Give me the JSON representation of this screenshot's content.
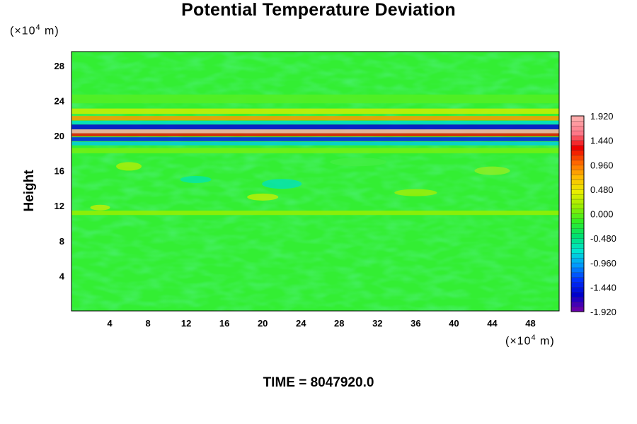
{
  "chart_data": {
    "type": "heatmap",
    "title": "Potential Temperature Deviation",
    "ylabel": "Height",
    "xlabel": "",
    "x_unit": {
      "prefix": "(×10",
      "exp": "4",
      "suffix": " m)"
    },
    "y_unit": {
      "prefix": "(×10",
      "exp": "4",
      "suffix": " m)"
    },
    "x_ticks": [
      4,
      8,
      12,
      16,
      20,
      24,
      28,
      32,
      36,
      40,
      44,
      48
    ],
    "y_ticks": [
      4,
      8,
      12,
      16,
      20,
      24,
      28
    ],
    "xlim": [
      0,
      51
    ],
    "ylim": [
      0,
      29.6
    ],
    "colorbar": {
      "min": -1.92,
      "max": 1.92,
      "labels": [
        "1.920",
        "1.440",
        "0.960",
        "0.480",
        "0.000",
        "-0.480",
        "-0.960",
        "-1.440",
        "-1.920"
      ],
      "stops": [
        "#6600aa",
        "#0000cc",
        "#0033ff",
        "#0099ff",
        "#00e5d0",
        "#00e070",
        "#33ee22",
        "#99ee00",
        "#e8ee00",
        "#ffbb00",
        "#ff6600",
        "#ee0000",
        "#ff7788",
        "#ffaaaa"
      ]
    },
    "background_color": "#33ee33"
  },
  "footer": "TIME = 8047920.0"
}
